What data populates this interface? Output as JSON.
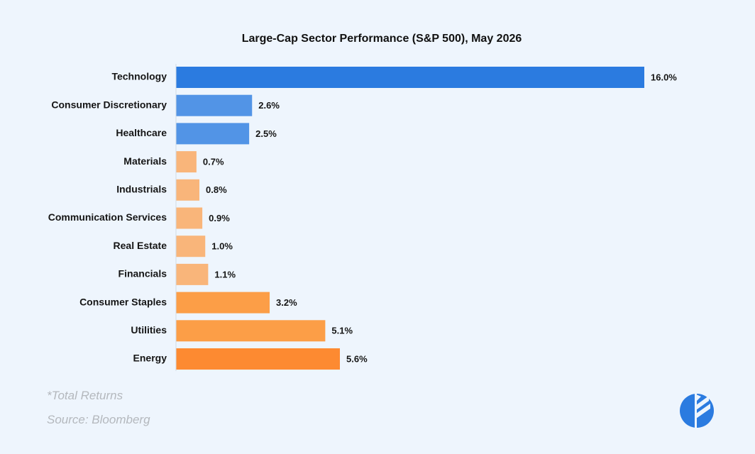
{
  "chart_data": {
    "type": "bar",
    "orientation": "horizontal",
    "title": "Large-Cap Sector Performance (S&P 500), May 2026",
    "categories": [
      "Technology",
      "Consumer Discretionary",
      "Healthcare",
      "Materials",
      "Industrials",
      "Communication Services",
      "Real Estate",
      "Financials",
      "Consumer Staples",
      "Utilities",
      "Energy"
    ],
    "values": [
      16.0,
      2.6,
      2.5,
      0.7,
      0.8,
      0.9,
      1.0,
      1.1,
      3.2,
      5.1,
      5.6
    ],
    "value_labels": [
      "16.0%",
      "2.6%",
      "2.5%",
      "0.7%",
      "0.8%",
      "0.9%",
      "1.0%",
      "1.1%",
      "3.2%",
      "5.1%",
      "5.6%"
    ],
    "colors": [
      "#2b7be0",
      "#5294e6",
      "#5294e6",
      "#f9b57a",
      "#f9b57a",
      "#f9b57a",
      "#f9b57a",
      "#f9b57a",
      "#fc9e47",
      "#fc9e47",
      "#fd8a31"
    ],
    "xlim": [
      0,
      16
    ],
    "grid": false,
    "xlabel": "",
    "ylabel": ""
  },
  "footnotes": {
    "total": "*Total Returns",
    "source": "Source: Bloomberg"
  },
  "logo": {
    "color": "#2b7be0",
    "icon": "pie-chart-logo-icon"
  }
}
